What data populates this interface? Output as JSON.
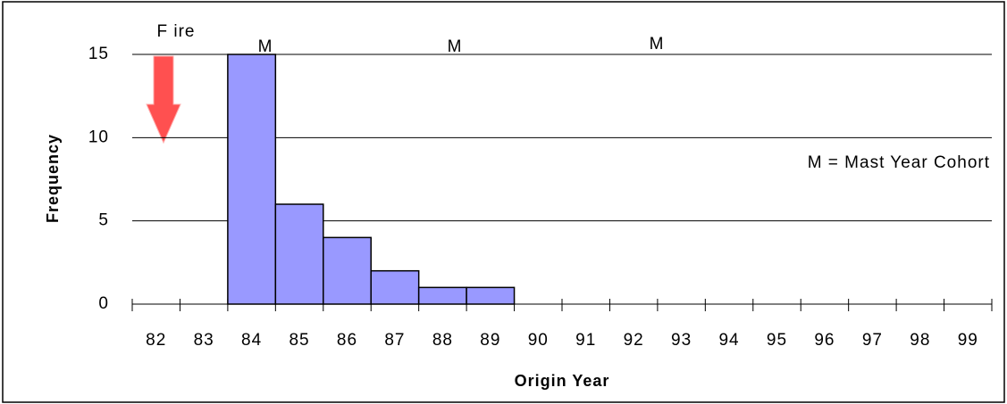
{
  "chart_data": {
    "type": "bar",
    "x_label": "Origin Year",
    "y_label": "Frequency",
    "categories": [
      "82",
      "83",
      "84",
      "85",
      "86",
      "87",
      "88",
      "89",
      "90",
      "91",
      "92",
      "93",
      "94",
      "95",
      "96",
      "97",
      "98",
      "99"
    ],
    "values": [
      0,
      0,
      15,
      6,
      4,
      2,
      1,
      1,
      0,
      0,
      0,
      0,
      0,
      0,
      0,
      0,
      0,
      0
    ],
    "color": "#9999ff",
    "ylim": [
      0,
      15
    ],
    "yticks": [
      0,
      5,
      10,
      15
    ],
    "grid": true,
    "annotations": [
      "F ire",
      "M",
      "M",
      "M",
      "M = Mast Year Cohort"
    ]
  }
}
